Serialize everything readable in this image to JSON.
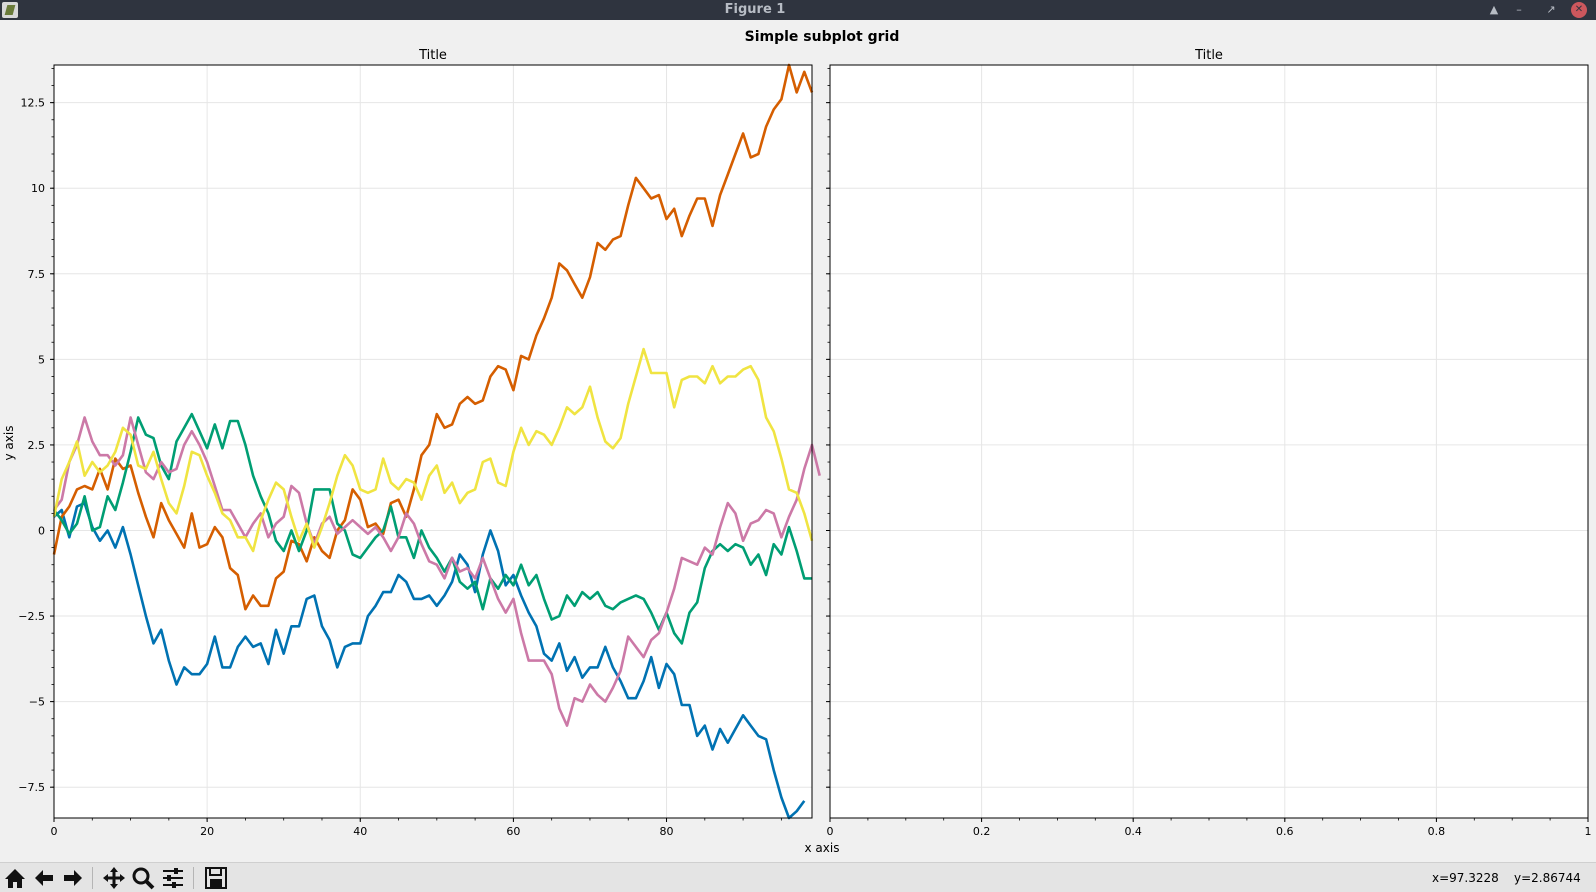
{
  "window": {
    "title": "Figure 1"
  },
  "figure": {
    "suptitle": "Simple subplot grid"
  },
  "chart_data": [
    {
      "type": "line",
      "title": "Title",
      "xlabel": "x axis",
      "ylabel": "y axis",
      "xlim": [
        0,
        99
      ],
      "ylim": [
        -8.4,
        13.6
      ],
      "xticks": [
        0,
        20,
        40,
        60,
        80
      ],
      "xtick_labels": [
        "0",
        "20",
        "40",
        "60",
        "80"
      ],
      "yticks": [
        -7.5,
        -5,
        -2.5,
        0,
        2.5,
        5,
        7.5,
        10,
        12.5
      ],
      "ytick_labels": [
        "−7.5",
        "−5",
        "−2.5",
        "0",
        "2.5",
        "5",
        "7.5",
        "10",
        "12.5"
      ],
      "grid": true,
      "x_step": 1,
      "series": [
        {
          "color": "#0072b2",
          "values": [
            0.4,
            0.6,
            -0.2,
            0.7,
            0.8,
            0.1,
            -0.3,
            0.0,
            -0.5,
            0.1,
            -0.7,
            -1.6,
            -2.5,
            -3.3,
            -2.9,
            -3.8,
            -4.5,
            -4.0,
            -4.2,
            -4.2,
            -3.9,
            -3.1,
            -4.0,
            -4.0,
            -3.4,
            -3.1,
            -3.4,
            -3.3,
            -3.9,
            -2.9,
            -3.6,
            -2.8,
            -2.8,
            -2.0,
            -1.9,
            -2.8,
            -3.2,
            -4.0,
            -3.4,
            -3.3,
            -3.3,
            -2.5,
            -2.2,
            -1.8,
            -1.8,
            -1.3,
            -1.5,
            -2.0,
            -2.0,
            -1.9,
            -2.2,
            -1.9,
            -1.5,
            -0.7,
            -1.0,
            -1.8,
            -0.7,
            0.0,
            -0.6,
            -1.6,
            -1.3,
            -1.9,
            -2.4,
            -2.8,
            -3.6,
            -3.8,
            -3.3,
            -4.1,
            -3.7,
            -4.3,
            -4.0,
            -4.0,
            -3.4,
            -4.0,
            -4.4,
            -4.9,
            -4.9,
            -4.4,
            -3.7,
            -4.6,
            -3.9,
            -4.2,
            -5.1,
            -5.1,
            -6.0,
            -5.7,
            -6.4,
            -5.8,
            -6.2,
            -5.8,
            -5.4,
            -5.7,
            -6.0,
            -6.1,
            -7.0,
            -7.8,
            -8.4,
            -8.2,
            -7.9
          ]
        },
        {
          "color": "#d55e00",
          "values": [
            -0.7,
            0.4,
            0.7,
            1.2,
            1.3,
            1.2,
            1.8,
            1.2,
            2.1,
            1.8,
            1.9,
            1.1,
            0.4,
            -0.2,
            0.8,
            0.3,
            -0.1,
            -0.5,
            0.5,
            -0.5,
            -0.4,
            0.1,
            -0.2,
            -1.1,
            -1.3,
            -2.3,
            -1.9,
            -2.2,
            -2.2,
            -1.4,
            -1.2,
            -0.3,
            -0.4,
            -0.9,
            -0.2,
            -0.6,
            -0.8,
            0.0,
            0.3,
            1.2,
            0.9,
            0.1,
            0.2,
            -0.1,
            0.8,
            0.9,
            0.4,
            1.2,
            2.2,
            2.5,
            3.4,
            3.0,
            3.1,
            3.7,
            3.9,
            3.7,
            3.8,
            4.5,
            4.8,
            4.7,
            4.1,
            5.1,
            5.0,
            5.7,
            6.2,
            6.8,
            7.8,
            7.6,
            7.2,
            6.8,
            7.4,
            8.4,
            8.2,
            8.5,
            8.6,
            9.5,
            10.3,
            10.0,
            9.7,
            9.8,
            9.1,
            9.4,
            8.6,
            9.2,
            9.7,
            9.7,
            8.9,
            9.8,
            10.4,
            11.0,
            11.6,
            10.9,
            11.0,
            11.8,
            12.3,
            12.6,
            13.6,
            12.8,
            13.4,
            12.8
          ]
        },
        {
          "color": "#009e73",
          "values": [
            0.6,
            0.3,
            -0.1,
            0.2,
            1.0,
            0.0,
            0.1,
            1.0,
            0.6,
            1.4,
            2.3,
            3.3,
            2.8,
            2.7,
            1.9,
            1.5,
            2.6,
            3.0,
            3.4,
            2.9,
            2.4,
            3.1,
            2.4,
            3.2,
            3.2,
            2.5,
            1.6,
            1.0,
            0.5,
            -0.3,
            -0.6,
            0.0,
            -0.6,
            0.0,
            1.2,
            1.2,
            1.2,
            0.2,
            0.0,
            -0.7,
            -0.8,
            -0.5,
            -0.2,
            0.0,
            0.7,
            -0.2,
            -0.2,
            -0.8,
            0.0,
            -0.5,
            -0.8,
            -1.2,
            -0.8,
            -1.5,
            -1.7,
            -1.5,
            -2.3,
            -1.4,
            -1.7,
            -1.3,
            -1.6,
            -1.0,
            -1.6,
            -1.3,
            -2.0,
            -2.6,
            -2.5,
            -1.9,
            -2.2,
            -1.8,
            -2.0,
            -1.8,
            -2.2,
            -2.3,
            -2.1,
            -2.0,
            -1.9,
            -2.0,
            -2.4,
            -2.9,
            -2.4,
            -3.0,
            -3.3,
            -2.4,
            -2.1,
            -1.1,
            -0.6,
            -0.4,
            -0.6,
            -0.4,
            -0.5,
            -1.0,
            -0.7,
            -1.3,
            -0.4,
            -0.7,
            0.1,
            -0.6,
            -1.4,
            -1.4
          ]
        },
        {
          "color": "#cc79a7",
          "values": [
            0.6,
            0.9,
            2.0,
            2.5,
            3.3,
            2.6,
            2.2,
            2.2,
            1.9,
            2.2,
            3.3,
            2.5,
            1.7,
            1.5,
            2.0,
            1.7,
            1.8,
            2.5,
            2.9,
            2.5,
            2.0,
            1.3,
            0.6,
            0.6,
            0.2,
            -0.2,
            0.2,
            0.5,
            -0.2,
            0.2,
            0.4,
            1.3,
            1.1,
            0.2,
            -0.4,
            0.2,
            0.4,
            -0.1,
            0.1,
            0.3,
            0.1,
            -0.1,
            0.1,
            -0.2,
            -0.6,
            -0.2,
            0.5,
            0.2,
            -0.4,
            -0.9,
            -1.0,
            -1.4,
            -0.8,
            -1.2,
            -1.1,
            -1.4,
            -0.8,
            -1.4,
            -2.0,
            -2.4,
            -2.0,
            -3.0,
            -3.8,
            -3.8,
            -3.8,
            -4.2,
            -5.2,
            -5.7,
            -4.9,
            -5.0,
            -4.5,
            -4.8,
            -5.0,
            -4.6,
            -4.1,
            -3.1,
            -3.4,
            -3.7,
            -3.2,
            -3.0,
            -2.4,
            -1.7,
            -0.8,
            -0.9,
            -1.0,
            -0.5,
            -0.7,
            0.1,
            0.8,
            0.5,
            -0.3,
            0.2,
            0.3,
            0.6,
            0.5,
            -0.2,
            0.4,
            0.9,
            1.8,
            2.5,
            1.6
          ]
        },
        {
          "color": "#f0e442",
          "values": [
            0.4,
            1.5,
            2.0,
            2.6,
            1.6,
            2.0,
            1.7,
            1.9,
            2.3,
            3.0,
            2.8,
            1.9,
            1.8,
            2.3,
            1.5,
            0.8,
            0.5,
            1.3,
            2.3,
            2.2,
            1.6,
            1.1,
            0.5,
            0.3,
            -0.2,
            -0.2,
            -0.6,
            0.3,
            0.9,
            1.4,
            1.2,
            0.4,
            -0.3,
            0.2,
            -0.5,
            0.1,
            0.8,
            1.6,
            2.2,
            1.9,
            1.2,
            1.1,
            1.2,
            2.1,
            1.4,
            1.2,
            1.5,
            1.4,
            0.9,
            1.6,
            1.9,
            1.1,
            1.4,
            0.8,
            1.1,
            1.2,
            2.0,
            2.1,
            1.4,
            1.3,
            2.3,
            3.0,
            2.5,
            2.9,
            2.8,
            2.5,
            3.0,
            3.6,
            3.4,
            3.6,
            4.2,
            3.3,
            2.6,
            2.4,
            2.7,
            3.7,
            4.5,
            5.3,
            4.6,
            4.6,
            4.6,
            3.6,
            4.4,
            4.5,
            4.5,
            4.3,
            4.8,
            4.3,
            4.5,
            4.5,
            4.7,
            4.8,
            4.4,
            3.3,
            2.9,
            2.1,
            1.2,
            1.1,
            0.5,
            -0.3
          ]
        }
      ]
    },
    {
      "type": "line",
      "title": "Title",
      "xlim": [
        0,
        1
      ],
      "ylim": [
        -8.4,
        13.6
      ],
      "xticks": [
        0,
        0.2,
        0.4,
        0.6,
        0.8,
        1
      ],
      "xtick_labels": [
        "0",
        "0.2",
        "0.4",
        "0.6",
        "0.8",
        "1"
      ],
      "grid": true,
      "series": []
    }
  ],
  "toolbar": {
    "buttons": [
      "home-icon",
      "back-arrow-icon",
      "forward-arrow-icon",
      "pan-icon",
      "zoom-icon",
      "configure-subplots-icon",
      "save-icon"
    ],
    "x_readout": "x=97.3228",
    "y_readout": "y=2.86744"
  }
}
